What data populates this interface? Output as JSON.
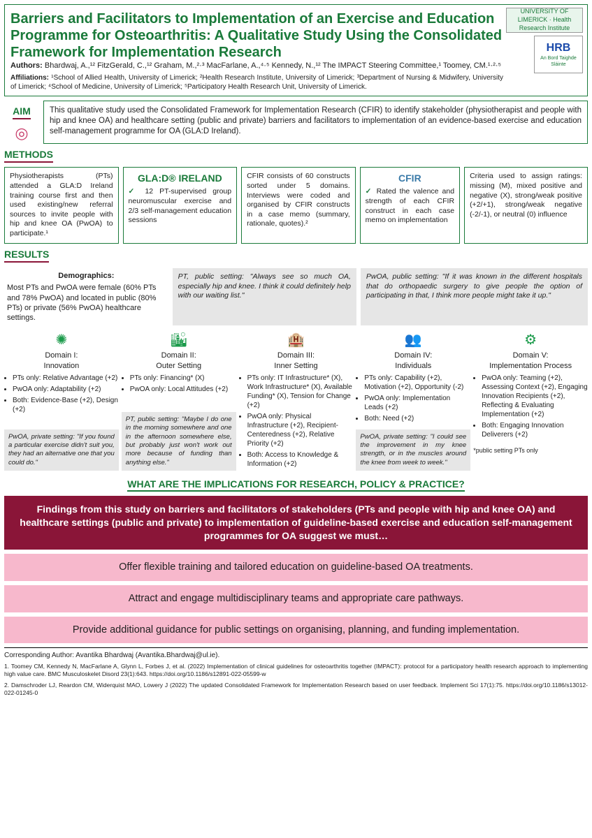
{
  "title": "Barriers and Facilitators to Implementation of an Exercise and Education Programme for Osteoarthritis: A Qualitative Study Using the Consolidated Framework for Implementation Research",
  "logos": {
    "ul": "UNIVERSITY OF LIMERICK · Health Research Institute",
    "hrb": "HRB",
    "hrb_sub": "An Bord Taighde Sláinte"
  },
  "authors_label": "Authors:",
  "authors": "Bhardwaj, A.,¹² FitzGerald, C.,¹² Graham, M.,²·³ MacFarlane, A.,⁴·⁵ Kennedy, N.,¹² The IMPACT Steering Committee,¹ Toomey, CM.¹·²·⁵",
  "affil_label": "Affiliations:",
  "affil": "¹School of Allied Health, University of Limerick; ²Health Research Institute, University of Limerick; ³Department of Nursing & Midwifery, University of Limerick; ⁴School of Medicine, University of Limerick; ⁵Participatory Health Research Unit, University of Limerick.",
  "aim": {
    "label": "AIM",
    "text": "This qualitative study used the Consolidated Framework for Implementation Research (CFIR) to identify stakeholder (physiotherapist and people with hip and knee OA) and healthcare setting (public and private) barriers and facilitators to implementation of an evidence-based exercise and education self-management programme for OA (GLA:D Ireland)."
  },
  "methods": {
    "label": "METHODS",
    "b1": "Physiotherapists (PTs) attended a GLA:D Ireland training course first and then used existing/new referral sources to invite people with hip and knee OA (PwOA) to participate.¹",
    "b2_logo": "GLA:D® IRELAND",
    "b2": "12 PT-supervised group neuromuscular exercise and 2/3 self-management education sessions",
    "b3": "CFIR consists of 60 constructs sorted under 5 domains. Interviews were coded and organised by CFIR constructs in a case memo (summary, rationale, quotes).²",
    "b4_logo": "CFIR",
    "b4": "Rated the valence and strength of each CFIR construct in each case memo on implementation",
    "b5": "Criteria used to assign ratings: missing (M), mixed positive and negative (X), strong/weak positive (+2/+1), strong/weak negative (-2/-1), or neutral (0) influence"
  },
  "results": {
    "label": "RESULTS",
    "demo_head": "Demographics:",
    "demo": "Most PTs and PwOA were female (60% PTs and 78% PwOA) and located in public (80% PTs) or private (56% PwOA) healthcare settings.",
    "q1": "PT, public setting: \"Always see so much OA, especially hip and knee. I think it could definitely help with our waiting list.\"",
    "q2": "PwOA, public setting: \"If it was known in the different hospitals that do orthopaedic surgery to give people the option of participating in that, I think more people might take it up.\""
  },
  "domains": [
    {
      "icon": "✺",
      "title": "Domain I:",
      "sub": "Innovation",
      "items": [
        "PTs only: Relative Advantage (+2)",
        "PwOA only: Adaptability (+2)",
        "Both: Evidence-Base (+2), Design (+2)"
      ],
      "quote": "PwOA, private setting: \"If you found a particular exercise didn't suit you, they had an alternative one that you could do.\""
    },
    {
      "icon": "🏙",
      "title": "Domain II:",
      "sub": "Outer Setting",
      "items": [
        "PTs only: Financing* (X)",
        "PwOA only: Local Attitudes (+2)"
      ],
      "quote": "PT, public setting: \"Maybe I do one in the morning somewhere and one in the afternoon somewhere else, but probably just won't work out more because of funding than anything else.\""
    },
    {
      "icon": "🏨",
      "title": "Domain III:",
      "sub": "Inner Setting",
      "items": [
        "PTs only: IT Infrastructure* (X), Work Infrastructure* (X), Available Funding* (X), Tension for Change (+2)",
        "PwOA only: Physical Infrastructure (+2), Recipient-Centeredness (+2), Relative Priority (+2)",
        "Both: Access to Knowledge & Information (+2)"
      ],
      "quote": ""
    },
    {
      "icon": "👥",
      "title": "Domain IV:",
      "sub": "Individuals",
      "items": [
        "PTs only: Capability (+2), Motivation (+2), Opportunity (-2)",
        "PwOA only: Implementation Leads (+2)",
        "Both: Need (+2)"
      ],
      "quote": "PwOA, private setting: \"I could see the improvement in my knee strength, or in the muscles around the knee from week to week.\""
    },
    {
      "icon": "⚙",
      "title": "Domain V:",
      "sub": "Implementation Process",
      "items": [
        "PwOA only: Teaming (+2), Assessing Context (+2), Engaging Innovation Recipients (+2), Reflecting & Evaluating Implementation (+2)",
        "Both: Engaging Innovation Deliverers (+2)"
      ],
      "quote": "",
      "footnote": "*public setting PTs only"
    }
  ],
  "implications": {
    "head": "WHAT ARE THE IMPLICATIONS FOR RESEARCH, POLICY & PRACTICE?",
    "lead": "Findings from this study on barriers and facilitators of stakeholders (PTs and people with hip and knee OA) and healthcare settings (public and private) to implementation of guideline-based exercise and education self-management programmes for OA suggest we must…",
    "i1": "Offer flexible training and tailored education on guideline-based OA treatments.",
    "i2": "Attract and engage multidisciplinary teams and appropriate care pathways.",
    "i3": "Provide additional guidance for public settings on organising, planning, and funding implementation."
  },
  "corr": "Corresponding Author: Avantika Bhardwaj (Avantika.Bhardwaj@ul.ie).",
  "ref1": "1. Toomey CM, Kennedy N, MacFarlane A, Glynn L, Forbes J, et al. (2022) Implementation of clinical guidelines for osteoarthritis together (IMPACT): protocol for a participatory health research approach to implementing high value care. BMC Musculoskelet Disord 23(1):643. https://doi.org/10.1186/s12891-022-05599-w",
  "ref2": "2. Damschroder LJ, Reardon CM, Widerquist MAO, Lowery J (2022) The updated Consolidated Framework for Implementation Research based on user feedback. Implement Sci 17(1):75. https://doi.org/10.1186/s13012-022-01245-0"
}
